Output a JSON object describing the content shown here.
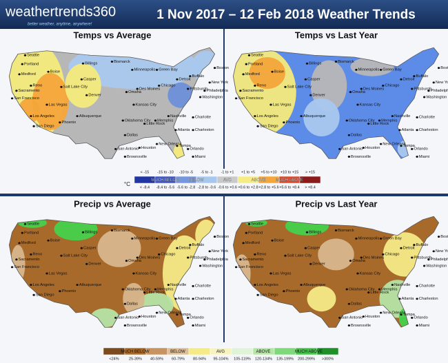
{
  "header": {
    "logo": "weathertrends360",
    "tagline": "better weather, anytime, anywhere!",
    "title": "1 Nov 2017 – 12 Feb 2018 Weather Trends"
  },
  "maps": [
    {
      "title": "Temps vs Average"
    },
    {
      "title": "Temps vs Last Year"
    },
    {
      "title": "Precip  vs Average"
    },
    {
      "title": "Precip vs Last Year"
    }
  ],
  "cities": [
    "Seattle",
    "Portland",
    "Boise",
    "Medford",
    "Reno",
    "Sacramento",
    "San Francisco",
    "Las Vegas",
    "Los Angeles",
    "San Diego",
    "Phoenix",
    "Salt Lake City",
    "Denver",
    "Billings",
    "Bismarck",
    "Casper",
    "Omaha",
    "Minneapolis",
    "Des Moines",
    "Kansas City",
    "Chicago",
    "Detroit",
    "Green Bay",
    "Albuquerque",
    "Oklahoma City",
    "Dallas",
    "San Antonio",
    "Houston",
    "New Orleans",
    "Little Rock",
    "Memphis",
    "Nashville",
    "Atlanta",
    "Tampa",
    "Miami",
    "Orlando",
    "Charleston",
    "Charlotte",
    "Washington",
    "Philadelphia",
    "New York",
    "Boston",
    "Buffalo",
    "Pittsburgh",
    "Brownsville"
  ],
  "temp_legend": {
    "unit": "°C",
    "f_ranges": [
      "< -15",
      "-15 to -10",
      "-10 to -5",
      "-5 to -1",
      "-1 to +1",
      "+1 to +5",
      "+5 to +10",
      "+10 to +15",
      "> +15"
    ],
    "classes": [
      "MUCH BELOW",
      "BELOW",
      "AVG",
      "ABOVE",
      "MUCH ABOVE"
    ],
    "c_ranges": [
      "< -8.4",
      "-8.4 to -5.6",
      "-5.6 to -2.8",
      "-2.8 to -0.6",
      "-0.6 to +0.6",
      "+0.6 to +2.8",
      "+2.8 to +5.6",
      "+5.6 to +8.4",
      "> +8.4"
    ]
  },
  "precip_legend": {
    "classes": [
      "MUCH BELOW",
      "BELOW",
      "AVG",
      "ABOVE",
      "MUCH ABOVE"
    ],
    "ranges": [
      "<24%",
      "25-39%",
      "40-59%",
      "60-79%",
      "80-94%",
      "95-104%",
      "105-119%",
      "120-134%",
      "135-199%",
      "200-299%",
      ">300%"
    ]
  }
}
